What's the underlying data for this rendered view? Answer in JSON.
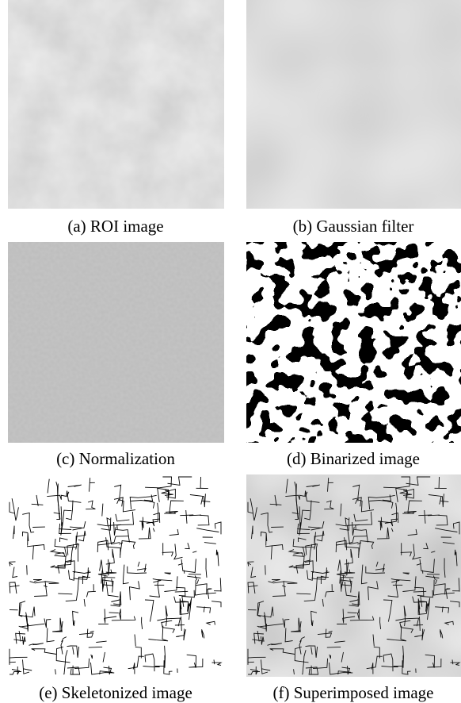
{
  "panels": [
    {
      "caption": "(a) ROI image"
    },
    {
      "caption": "(b) Gaussian filter"
    },
    {
      "caption": "(c) Normalization"
    },
    {
      "caption": "(d) Binarized image"
    },
    {
      "caption": "(e) Skeletonized image"
    },
    {
      "caption": "(f) Superimposed image"
    }
  ]
}
